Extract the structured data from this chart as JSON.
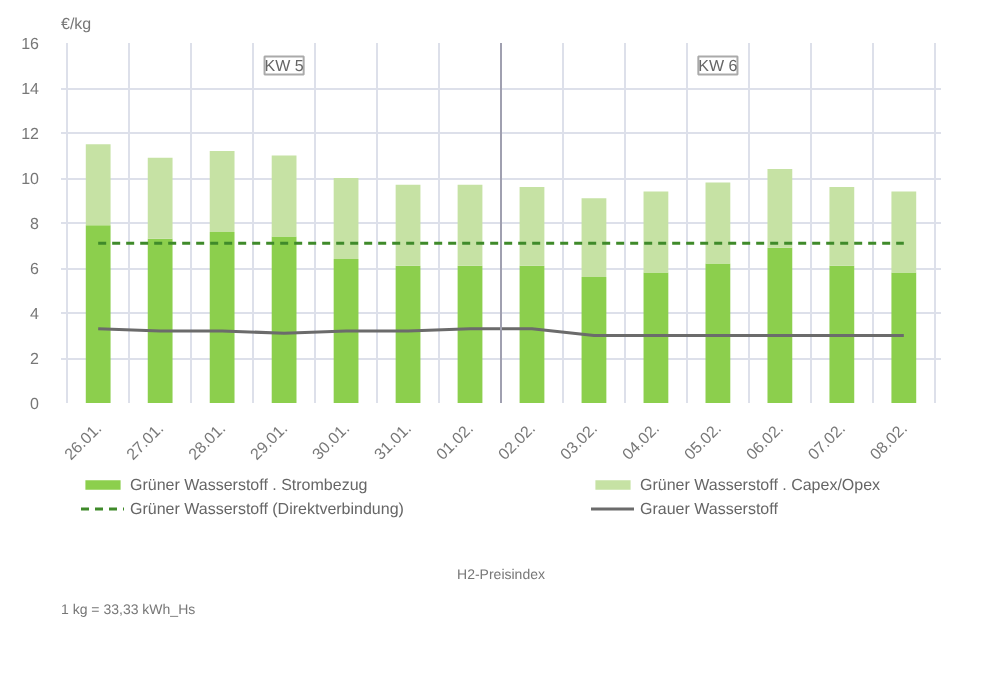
{
  "chart_data": {
    "type": "bar",
    "stacked": true,
    "ylabel": "€/kg",
    "categories": [
      "26.01.",
      "27.01.",
      "28.01.",
      "29.01.",
      "30.01.",
      "31.01.",
      "01.02.",
      "02.02.",
      "03.02.",
      "04.02.",
      "05.02.",
      "06.02.",
      "07.02.",
      "08.02."
    ],
    "series": [
      {
        "name": "Grüner Wasserstoff . Strombezug",
        "color": "#8ccf4d",
        "values": [
          7.9,
          7.3,
          7.6,
          7.4,
          6.4,
          6.1,
          6.1,
          6.1,
          5.6,
          5.8,
          6.2,
          6.9,
          6.1,
          5.8
        ]
      },
      {
        "name": "Grüner Wasserstoff . Capex/Opex",
        "color": "#c6e2a4",
        "values": [
          3.6,
          3.6,
          3.6,
          3.6,
          3.6,
          3.6,
          3.6,
          3.5,
          3.5,
          3.6,
          3.6,
          3.5,
          3.5,
          3.6
        ]
      },
      {
        "name": "Grüner Wasserstoff (Direktverbindung)",
        "type": "line",
        "line_style": "dashed",
        "color": "#3f8a2a",
        "values": [
          7.1,
          7.1,
          7.1,
          7.1,
          7.1,
          7.1,
          7.1,
          7.1,
          7.1,
          7.1,
          7.1,
          7.1,
          7.1,
          7.1
        ]
      },
      {
        "name": "Grauer Wasserstoff",
        "type": "line",
        "line_style": "solid",
        "color": "#6b6b6b",
        "values": [
          3.3,
          3.2,
          3.2,
          3.1,
          3.2,
          3.2,
          3.3,
          3.3,
          3.0,
          3.0,
          3.0,
          3.0,
          3.0,
          3.0
        ]
      }
    ],
    "ylim": [
      0,
      16
    ],
    "yticks": [
      0,
      2,
      4,
      6,
      8,
      10,
      12,
      14,
      16
    ],
    "grid": true,
    "legend": "bottom",
    "ref_lines": [
      {
        "axis": "x",
        "value": "02.02.",
        "color": "#a0a0b0",
        "line_style": "solid"
      }
    ],
    "annotations": [
      {
        "text": "KW 5",
        "x": "29.01.",
        "y": 15
      },
      {
        "text": "KW 6",
        "x": "05.02.",
        "y": 15
      },
      "H2-Preisindex",
      "1 kg = 33,33 kWh_Hs"
    ]
  }
}
